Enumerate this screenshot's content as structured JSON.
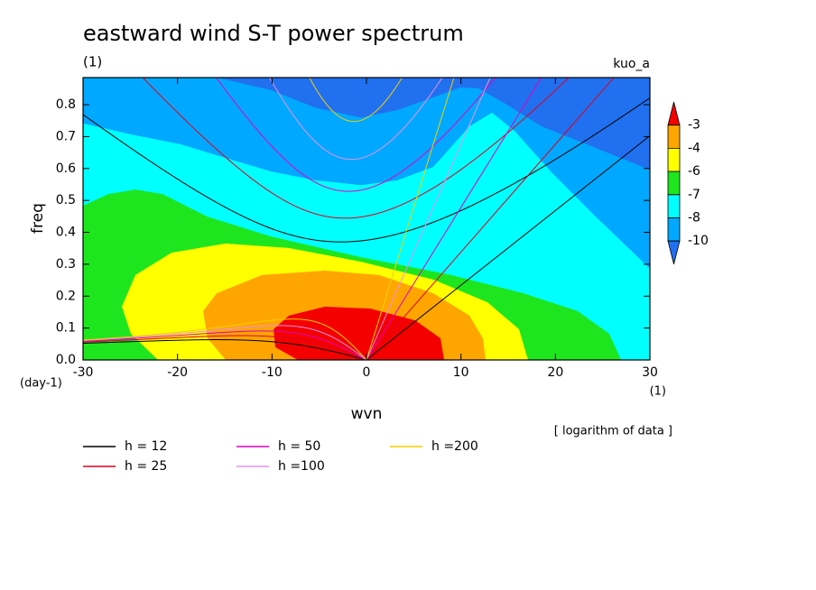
{
  "chart_data": {
    "type": "contour",
    "title": "eastward wind S-T power spectrum",
    "subtitle": "(1)",
    "annotation": "kuo_a",
    "note": "[ logarithm of data ]",
    "x_label": "wvn",
    "x_unit": "(1)",
    "y_label": "freq",
    "y_unit": "(day-1)",
    "xlim": [
      -30,
      30
    ],
    "ylim": [
      0,
      0.885
    ],
    "xticks": [
      -30,
      -20,
      -10,
      0,
      10,
      20,
      30
    ],
    "yticks": [
      {
        "value": 0,
        "label": "0.0"
      },
      0.1,
      0.2,
      0.3,
      0.4,
      0.5,
      0.6,
      0.7,
      0.8
    ],
    "colorbar": {
      "levels": [
        -3,
        -4,
        -6,
        -7,
        -8,
        -10
      ],
      "colors": [
        "#f40000",
        "#ffa500",
        "#ffff00",
        "#1ee61e",
        "#00ffff",
        "#00a8ff",
        "#2070f0"
      ]
    },
    "contours": [
      {
        "level": -10,
        "x": [
          -30,
          -15.86,
          -10.13,
          -5.35,
          -0.57,
          3.25,
          7.07,
          9.94,
          11.85,
          14.71,
          18.53,
          23.31,
          28.09,
          30
        ],
        "y": [
          0.885,
          0.885,
          0.846,
          0.79,
          0.76,
          0.783,
          0.823,
          0.854,
          0.851,
          0.803,
          0.732,
          0.676,
          0.619,
          0.596
        ]
      },
      {
        "level": -8,
        "x": [
          -30,
          -24.46,
          -19.68,
          -14.9,
          -10.13,
          -5.35,
          -0.57,
          3.25,
          7.07,
          10.89,
          13.28,
          15.67,
          19.49,
          24.27,
          30
        ],
        "y": [
          0.741,
          0.704,
          0.676,
          0.633,
          0.591,
          0.563,
          0.548,
          0.563,
          0.605,
          0.732,
          0.775,
          0.718,
          0.591,
          0.449,
          0.286
        ]
      },
      {
        "level": -7,
        "x": [
          -30,
          -27.32,
          -24.46,
          -21.59,
          -16.82,
          -10.13,
          -0.57,
          8.98,
          16.62,
          22.36,
          25.7,
          26.94
        ],
        "y": [
          0.483,
          0.52,
          0.534,
          0.52,
          0.449,
          0.387,
          0.322,
          0.266,
          0.209,
          0.153,
          0.082,
          0
        ]
      },
      {
        "level": -6,
        "x": [
          -22.07,
          -24.94,
          -25.89,
          -24.46,
          -20.64,
          -14.9,
          -8.22,
          -0.57,
          7.07,
          12.8,
          16.15,
          17.1
        ],
        "y": [
          0,
          0.082,
          0.167,
          0.266,
          0.336,
          0.365,
          0.351,
          0.308,
          0.252,
          0.181,
          0.096,
          0
        ]
      },
      {
        "level": -4,
        "x": [
          -14.9,
          -16.82,
          -17.29,
          -15.86,
          -11.08,
          -4.4,
          1.34,
          7.07,
          10.89,
          12.32,
          12.61
        ],
        "y": [
          0,
          0.068,
          0.153,
          0.209,
          0.266,
          0.28,
          0.266,
          0.209,
          0.139,
          0.068,
          0
        ]
      },
      {
        "level": -3,
        "x": [
          -7.26,
          -9.65,
          -9.84,
          -8.22,
          -4.4,
          0.38,
          5.16,
          7.83,
          8.22
        ],
        "y": [
          0,
          0.04,
          0.096,
          0.139,
          0.167,
          0.161,
          0.124,
          0.068,
          0
        ]
      }
    ],
    "series": [
      {
        "name": "h = 12",
        "h": 12,
        "color": "#000000"
      },
      {
        "name": "h = 25",
        "h": 25,
        "color": "#e00020"
      },
      {
        "name": "h = 50",
        "h": 50,
        "color": "#e000c0"
      },
      {
        "name": "h =100",
        "h": 100,
        "color": "#e890e8"
      },
      {
        "name": "h =200",
        "h": 200,
        "color": "#f0d000"
      }
    ]
  }
}
